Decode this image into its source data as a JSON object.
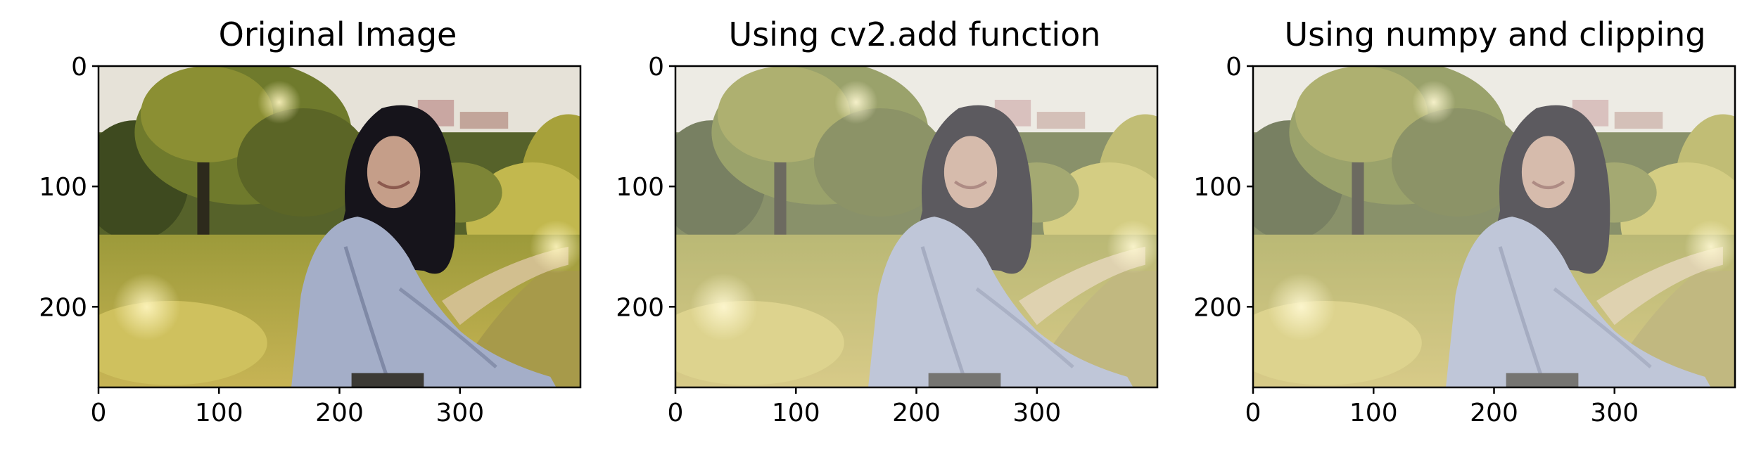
{
  "chart_data": [
    {
      "type": "image",
      "title": "Original Image",
      "xlim": [
        0,
        400
      ],
      "ylim": [
        267,
        0
      ],
      "x_ticks": [
        0,
        100,
        200,
        300
      ],
      "y_ticks": [
        0,
        100,
        200
      ],
      "brightness": "original"
    },
    {
      "type": "image",
      "title": "Using cv2.add function",
      "xlim": [
        0,
        400
      ],
      "ylim": [
        267,
        0
      ],
      "x_ticks": [
        0,
        100,
        200,
        300
      ],
      "y_ticks": [
        0,
        100,
        200
      ],
      "brightness": "increased"
    },
    {
      "type": "image",
      "title": "Using numpy and clipping",
      "xlim": [
        0,
        400
      ],
      "ylim": [
        267,
        0
      ],
      "x_ticks": [
        0,
        100,
        200,
        300
      ],
      "y_ticks": [
        0,
        100,
        200
      ],
      "brightness": "increased"
    }
  ],
  "colors": {
    "sky": "#e8e4dc",
    "foliage_dark": "#3f4a1e",
    "foliage_mid": "#8a8a2e",
    "foliage_light": "#c9c25a",
    "grass": "#b7a94a",
    "path": "#cdb78e",
    "hair": "#15131a",
    "skin": "#c9a28e",
    "shirt": "#a8b2cc"
  }
}
